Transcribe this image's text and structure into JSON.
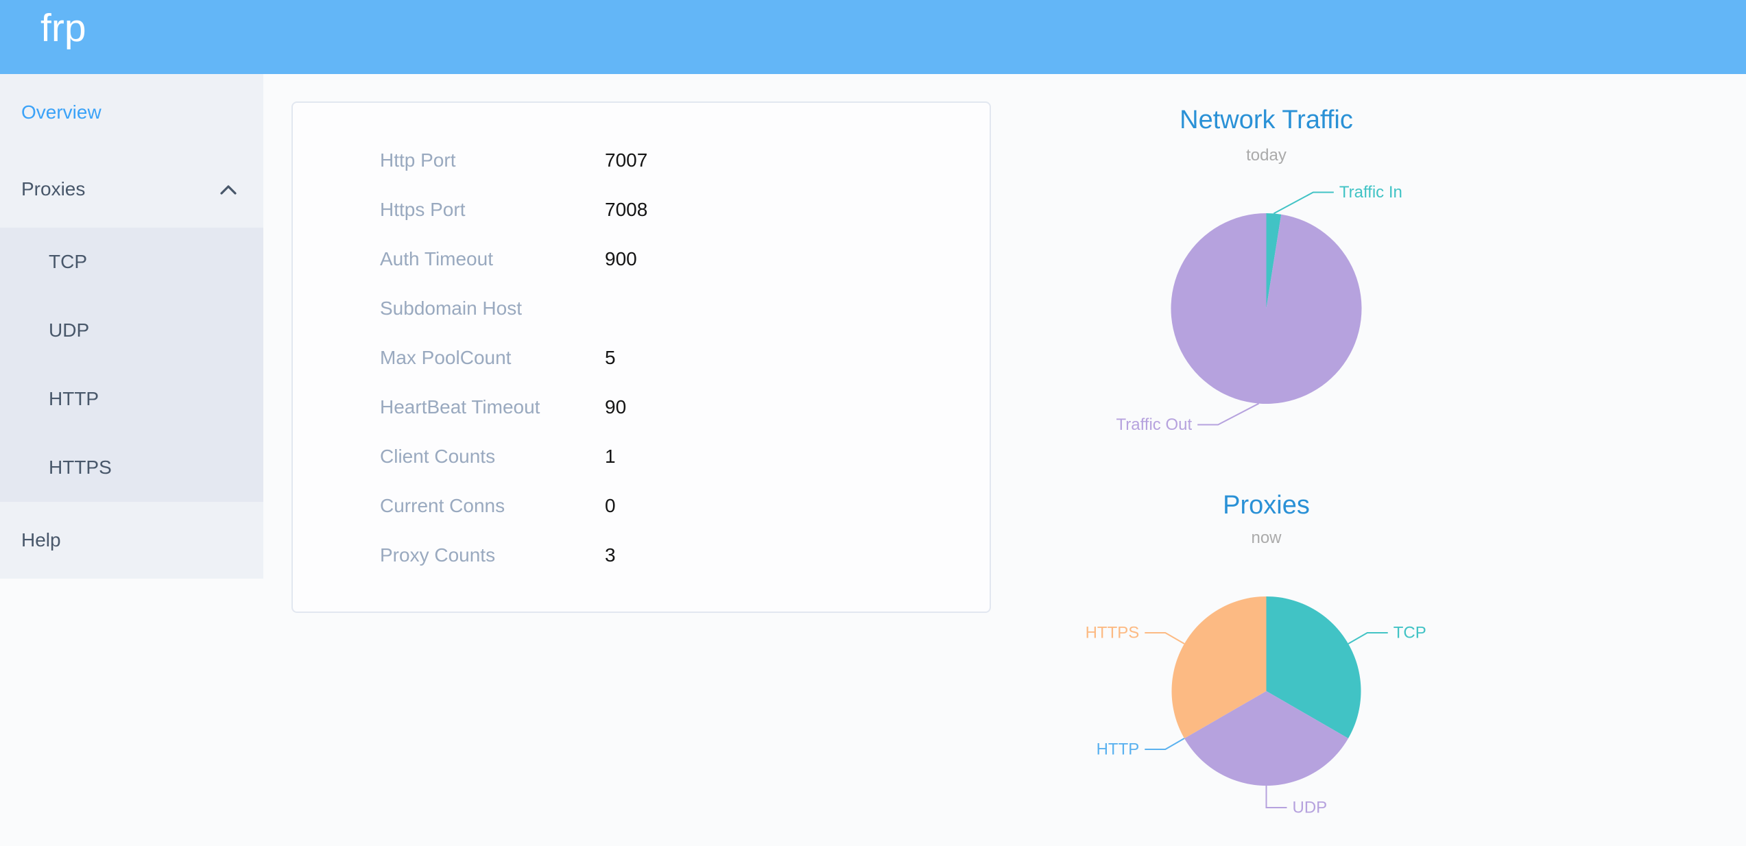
{
  "header": {
    "brand": "frp"
  },
  "sidebar": {
    "overview": {
      "label": "Overview"
    },
    "proxies": {
      "label": "Proxies",
      "expanded": true,
      "children": [
        "TCP",
        "UDP",
        "HTTP",
        "HTTPS"
      ]
    },
    "help": {
      "label": "Help"
    },
    "active_item": "Overview"
  },
  "overview_panel": {
    "rows": [
      {
        "label": "Http Port",
        "value": "7007"
      },
      {
        "label": "Https Port",
        "value": "7008"
      },
      {
        "label": "Auth Timeout",
        "value": "900"
      },
      {
        "label": "Subdomain Host",
        "value": ""
      },
      {
        "label": "Max PoolCount",
        "value": "5"
      },
      {
        "label": "HeartBeat Timeout",
        "value": "90"
      },
      {
        "label": "Client Counts",
        "value": "1"
      },
      {
        "label": "Current Conns",
        "value": "0"
      },
      {
        "label": "Proxy Counts",
        "value": "3"
      }
    ]
  },
  "chart_data": [
    {
      "type": "pie",
      "title": "Network Traffic",
      "subtitle": "today",
      "series": [
        {
          "name": "Traffic In",
          "value": 2.5,
          "color": "#41c3c5"
        },
        {
          "name": "Traffic Out",
          "value": 97.5,
          "color": "#b6a2de"
        }
      ],
      "value_unit": "percent of total traffic today (estimated from pie angles)",
      "legend_position": "none"
    },
    {
      "type": "pie",
      "title": "Proxies",
      "subtitle": "now",
      "series": [
        {
          "name": "TCP",
          "value": 1,
          "color": "#41c3c5"
        },
        {
          "name": "UDP",
          "value": 1,
          "color": "#b6a2de"
        },
        {
          "name": "HTTP",
          "value": 0,
          "color": "#5ab1ef"
        },
        {
          "name": "HTTPS",
          "value": 1,
          "color": "#fcba83"
        }
      ],
      "value_unit": "proxy count",
      "legend_position": "none"
    }
  ],
  "colors": {
    "header_background": "#63b6f7",
    "brand_text": "#ffffff",
    "menu_background": "#eef1f6",
    "submenu_background": "#e4e8f1",
    "menu_text": "#48576a",
    "menu_active_text": "#3aa2f8",
    "panel_label": "#99a9bf",
    "panel_value": "#131313",
    "chart_title": "#2a91d6",
    "chart_subtitle": "#aaaaaa"
  }
}
